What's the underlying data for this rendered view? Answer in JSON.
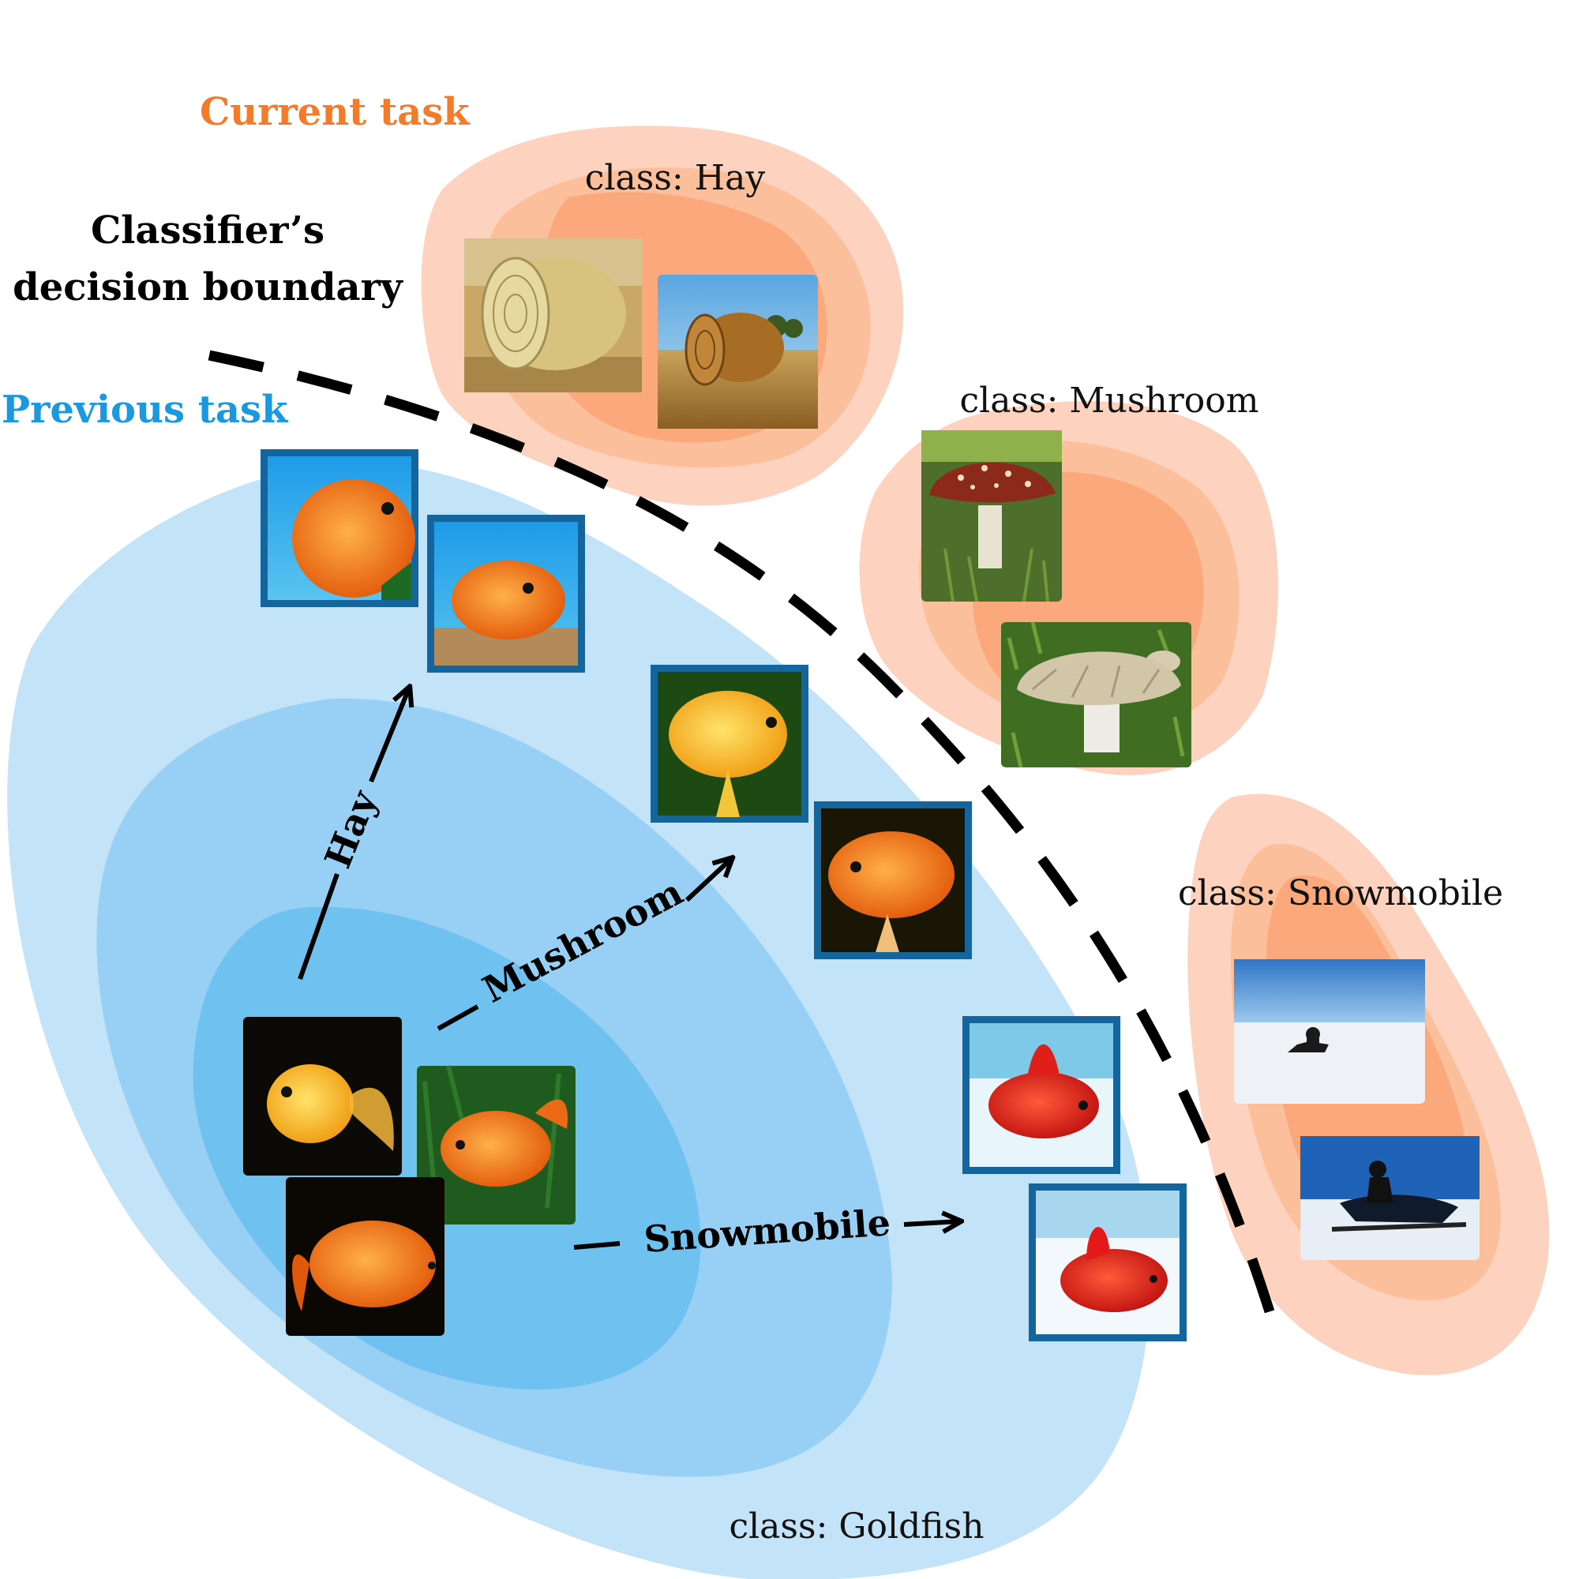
{
  "labels": {
    "current_task": "Current task",
    "previous_task": "Previous task",
    "boundary_line1": "Classifier’s",
    "boundary_line2": "decision boundary"
  },
  "classes": {
    "hay": "class: Hay",
    "mushroom": "class: Mushroom",
    "snowmobile": "class: Snowmobile",
    "goldfish": "class: Goldfish"
  },
  "arrows": {
    "hay": "Hay",
    "mushroom": "Mushroom",
    "snowmobile": "Snowmobile"
  },
  "colors": {
    "current": "#f47b2a",
    "previous": "#1a98e0",
    "frame": "#14659e"
  }
}
